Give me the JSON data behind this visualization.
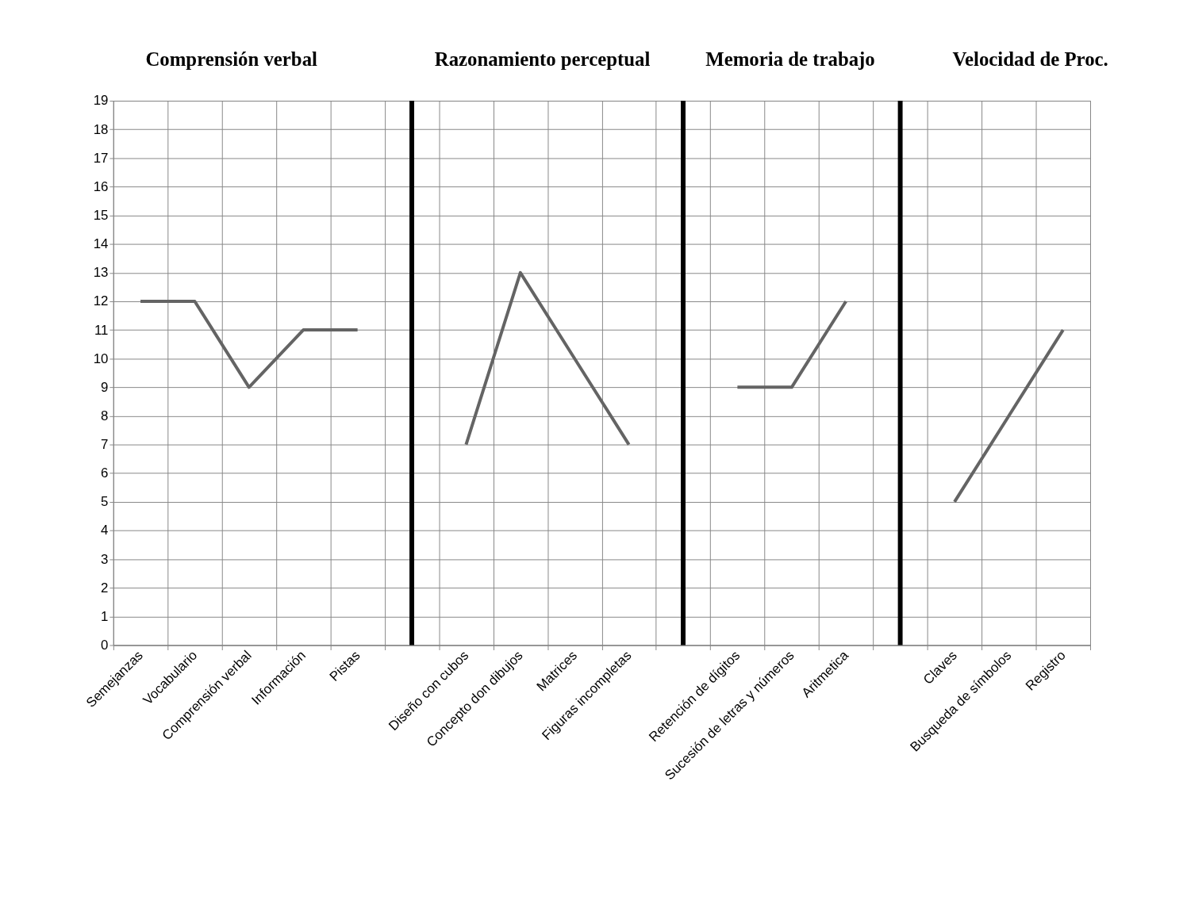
{
  "chart_data": {
    "type": "line",
    "categories": [
      "Semejanzas",
      "Vocabulario",
      "Comprensión verbal",
      "Información",
      "Pistas",
      null,
      "Diseño con cubos",
      "Concepto don dibujos",
      "Matrices",
      "Figuras incompletas",
      null,
      "Retención de dígitos",
      "Sucesión de letras y números",
      "Aritmetica",
      null,
      "Claves",
      "Busqueda de símbolos",
      "Registro"
    ],
    "series": [
      {
        "color": "#646464",
        "values": [
          12,
          12,
          9,
          11,
          11,
          null,
          7,
          13,
          10,
          7,
          null,
          9,
          9,
          12,
          null,
          5,
          8,
          11
        ]
      }
    ],
    "ylim": [
      0,
      19
    ],
    "yticks": [
      0,
      1,
      2,
      3,
      4,
      5,
      6,
      7,
      8,
      9,
      10,
      11,
      12,
      13,
      14,
      15,
      16,
      17,
      18,
      19
    ],
    "grid": true,
    "marker": "none",
    "line_style": "solid",
    "annotations": [
      "Comprensión verbal",
      "Razonamiento perceptual",
      "Memoria de trabajo",
      "Velocidad de Proc."
    ]
  }
}
